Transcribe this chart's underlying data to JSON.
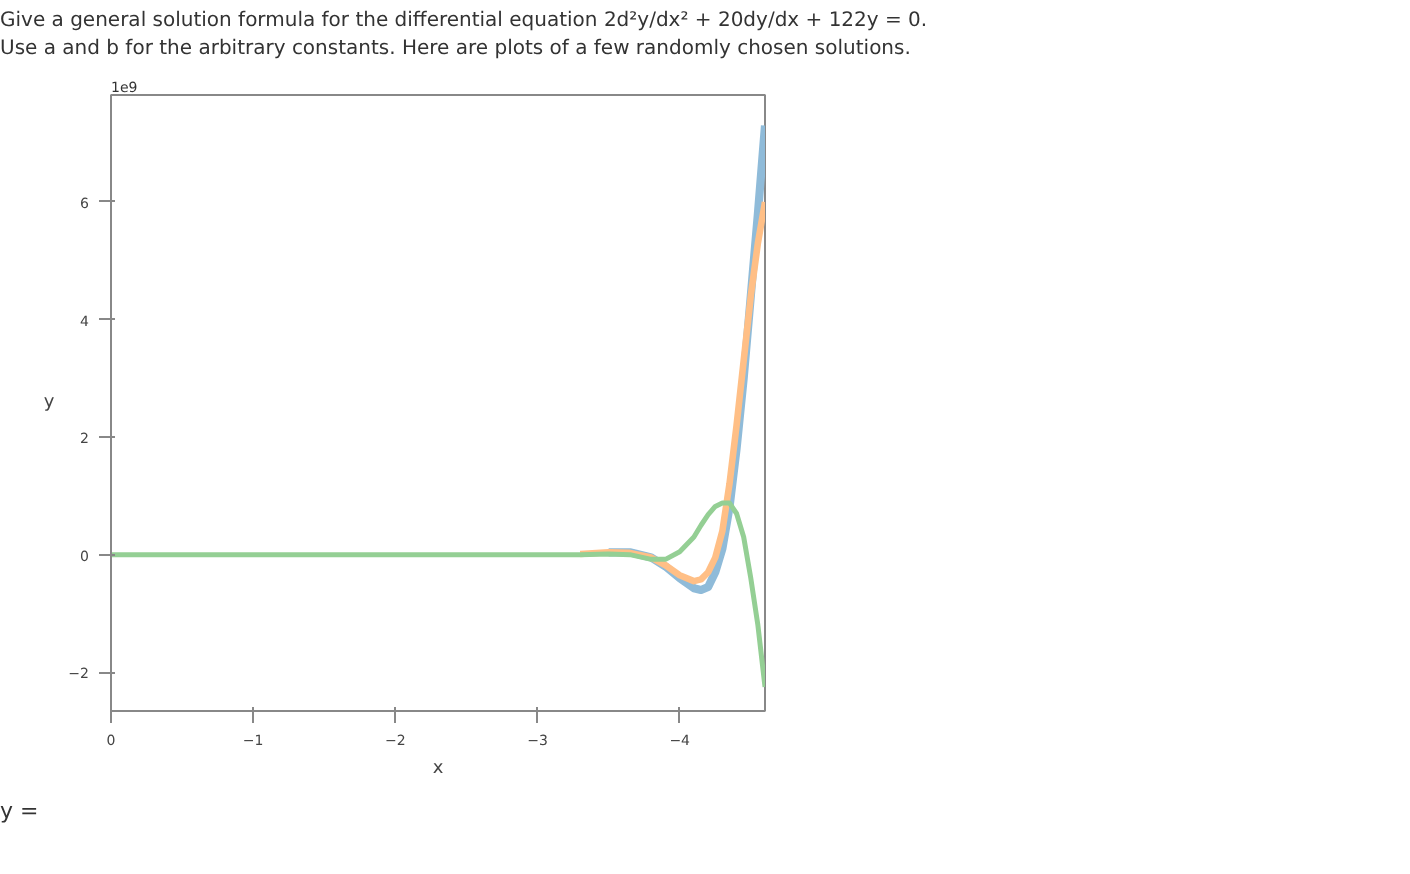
{
  "chart_data": {
    "type": "line",
    "title": "Give a general solution formula for the differential equation 2d²y/dx² + 20dy/dx + 122y = 0.",
    "subtitle": "Use a and b for the arbitrary constants. Here are plots of a few randomly chosen solutions.",
    "xlabel": "x",
    "ylabel": "y",
    "annotations": [
      "1e9",
      "y ="
    ],
    "x": [
      0,
      -1,
      -2,
      -3,
      -3.3,
      -3.5,
      -3.65,
      -3.8,
      -3.9,
      -4.0,
      -4.1,
      -4.15,
      -4.2,
      -4.25,
      -4.3,
      -4.35,
      -4.4,
      -4.45,
      -4.5,
      -4.55,
      -4.6
    ],
    "series": [
      {
        "color": "#8fbbd9",
        "values": [
          null,
          null,
          null,
          null,
          null,
          0.04,
          0.04,
          -0.05,
          -0.2,
          -0.4,
          -0.57,
          -0.6,
          -0.55,
          -0.3,
          0.1,
          0.8,
          1.8,
          3.0,
          4.4,
          5.8,
          7.3
        ]
      },
      {
        "color": "#ffbf86",
        "values": [
          null,
          null,
          null,
          null,
          0.01,
          0.04,
          0.03,
          -0.05,
          -0.18,
          -0.35,
          -0.45,
          -0.42,
          -0.3,
          -0.05,
          0.4,
          1.2,
          2.2,
          3.3,
          4.4,
          5.3,
          6.0
        ]
      },
      {
        "color": "#94cf94",
        "values": [
          0,
          0,
          0,
          0,
          0,
          0.01,
          0,
          -0.08,
          -0.08,
          0.05,
          0.3,
          0.5,
          0.68,
          0.82,
          0.88,
          0.88,
          0.7,
          0.3,
          -0.4,
          -1.2,
          -2.25
        ]
      }
    ],
    "xlim": [
      0,
      -4.6
    ],
    "xticks": [
      0,
      {
        "value": -1,
        "label": "−1"
      },
      {
        "value": -2,
        "label": "−2"
      },
      {
        "value": -3,
        "label": "−3"
      },
      {
        "value": -4,
        "label": "−4"
      }
    ],
    "ylim": [
      -2.66,
      7.82
    ],
    "yticks": [
      {
        "value": -2,
        "label": "−2"
      },
      0,
      2,
      4,
      6
    ],
    "grid": false,
    "line_style": "solid"
  }
}
